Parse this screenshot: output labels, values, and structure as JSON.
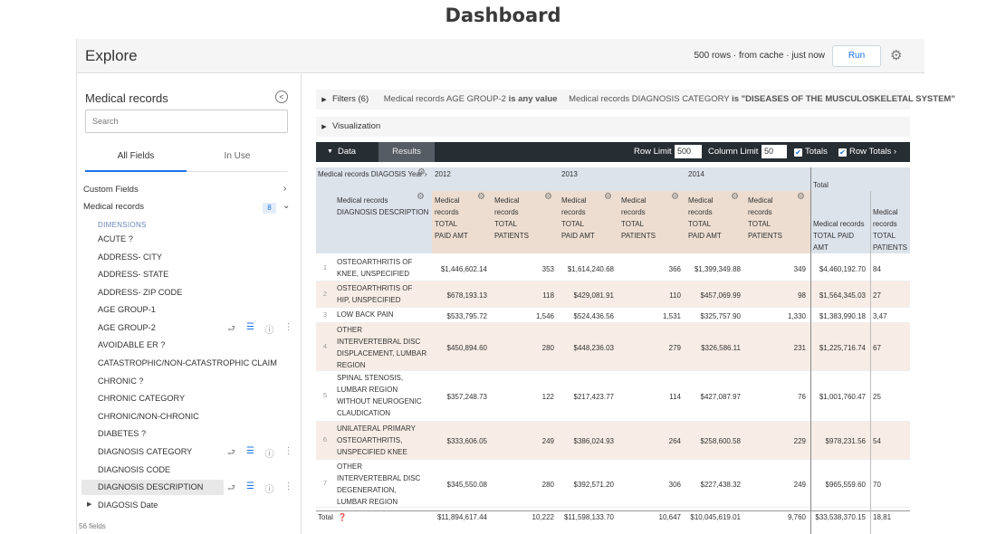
{
  "page_title": "Dashboard",
  "header": {
    "title": "Explore",
    "status": "500 rows · from cache · just now",
    "run_label": "Run"
  },
  "sidebar": {
    "title": "Medical records",
    "search_placeholder": "Search",
    "tabs": [
      "All Fields",
      "In Use"
    ],
    "custom_fields": "Custom Fields",
    "view_name": "Medical records",
    "view_count": "8",
    "dimensions_label": "DIMENSIONS",
    "fields": [
      "ACUTE ?",
      "ADDRESS- CITY",
      "ADDRESS- STATE",
      "ADDRESS- ZIP CODE",
      "AGE GROUP-1",
      "AGE GROUP-2",
      "AVOIDABLE ER ?",
      "CATASTROPHIC/NON-CATASTROPHIC CLAIM",
      "CHRONIC ?",
      "CHRONIC CATEGORY",
      "CHRONIC/NON-CHRONIC",
      "DIABETES ?",
      "DIAGNOSIS CATEGORY",
      "DIAGNOSIS CODE",
      "DIAGNOSIS DESCRIPTION",
      "DIAGOSIS Date"
    ],
    "footer": "56 fields"
  },
  "filters": {
    "label": "Filters (6)",
    "f1_field": "Medical records AGE GROUP-2",
    "f1_op": "is any value",
    "f2_field": "Medical records DIAGNOSIS CATEGORY",
    "f2_op": "is \"DISEASES OF THE MUSCULOSKELETAL SYSTEM\""
  },
  "visualization_label": "Visualization",
  "data_bar": {
    "data_label": "Data",
    "results_label": "Results",
    "row_limit_label": "Row Limit",
    "row_limit": "500",
    "col_limit_label": "Column Limit",
    "col_limit": "50",
    "totals_label": "Totals",
    "row_totals_label": "Row Totals"
  },
  "table": {
    "pivot_label": "Medical records DIAGOSIS Year",
    "years": [
      "2012",
      "2013",
      "2014"
    ],
    "total_label": "Total",
    "dim_header": "Medical records DIAGNOSIS DESCRIPTION",
    "measure_paid": "Medical records TOTAL PAID AMT",
    "measure_patients": "Medical records TOTAL PATIENTS",
    "rows": [
      {
        "n": "1",
        "desc": "OSTEOARTHRITIS OF KNEE, UNSPECIFIED",
        "v": [
          "$1,446,602.14",
          "353",
          "$1,614,240.68",
          "366",
          "$1,399,349.88",
          "349",
          "$4,460,192.70",
          "84"
        ]
      },
      {
        "n": "2",
        "desc": "OSTEOARTHRITIS OF HIP, UNSPECIFIED",
        "v": [
          "$678,193.13",
          "118",
          "$429,081.91",
          "110",
          "$457,069.99",
          "98",
          "$1,564,345.03",
          "27"
        ]
      },
      {
        "n": "3",
        "desc": "LOW BACK PAIN",
        "v": [
          "$533,795.72",
          "1,546",
          "$524,436.56",
          "1,531",
          "$325,757.90",
          "1,330",
          "$1,383,990.18",
          "3,47"
        ]
      },
      {
        "n": "4",
        "desc": "OTHER INTERVERTEBRAL DISC DISPLACEMENT, LUMBAR REGION",
        "v": [
          "$450,894.60",
          "280",
          "$448,236.03",
          "279",
          "$326,586.11",
          "231",
          "$1,225,716.74",
          "67"
        ]
      },
      {
        "n": "5",
        "desc": "SPINAL STENOSIS, LUMBAR REGION WITHOUT NEUROGENIC CLAUDICATION",
        "v": [
          "$357,248.73",
          "122",
          "$217,423.77",
          "114",
          "$427,087.97",
          "76",
          "$1,001,760.47",
          "25"
        ]
      },
      {
        "n": "6",
        "desc": "UNILATERAL PRIMARY OSTEOARTHRITIS, UNSPECIFIED KNEE",
        "v": [
          "$333,606.05",
          "249",
          "$386,024.93",
          "264",
          "$258,600.58",
          "229",
          "$978,231.56",
          "54"
        ]
      },
      {
        "n": "7",
        "desc": "OTHER INTERVERTEBRAL DISC DEGENERATION, LUMBAR REGION",
        "v": [
          "$345,550.08",
          "280",
          "$392,571.20",
          "306",
          "$227,438.32",
          "249",
          "$965,559.60",
          "70"
        ]
      }
    ],
    "totals_row_label": "Total",
    "totals": [
      "$11,894,617.44",
      "10,222",
      "$11,598,133.70",
      "10,647",
      "$10,045,619.01",
      "9,760",
      "$33,538,370.15",
      "18,81"
    ]
  }
}
